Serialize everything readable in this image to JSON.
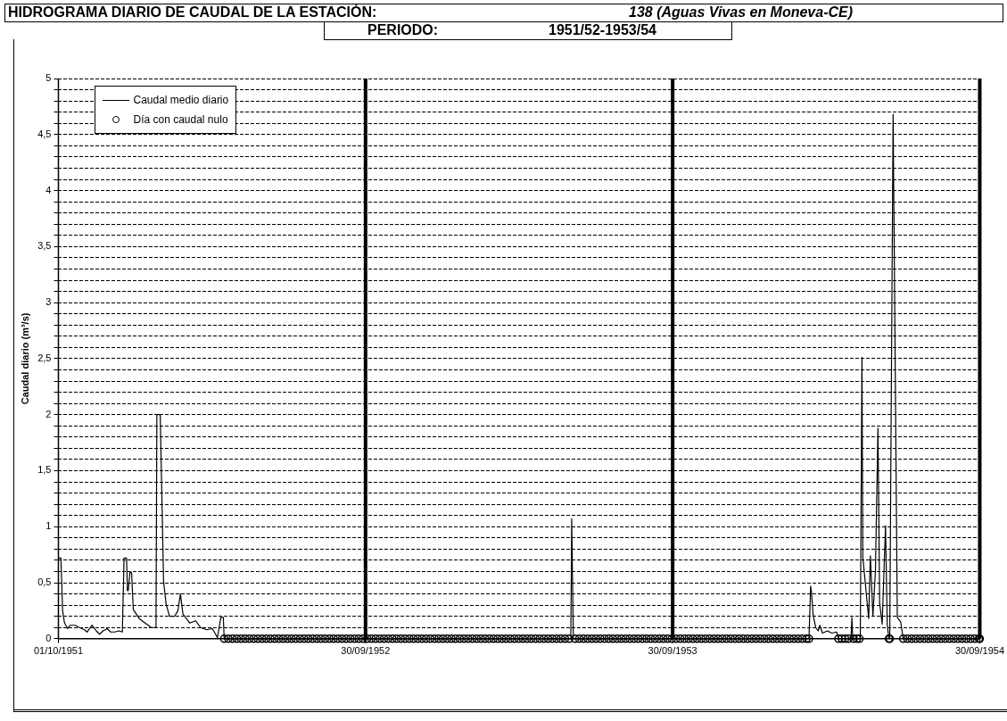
{
  "chart_data": {
    "type": "line",
    "title": "HIDROGRAMA DIARIO DE CAUDAL DE LA ESTACIÓN:",
    "subtitle": "138 (Aguas Vivas en Moneva-CE)",
    "annotations": [
      "PERIODO:",
      "1951/52-1953/54"
    ],
    "ylabel": "Caudal diario (m³/s)",
    "xlim": [
      "1951-10-01",
      "1954-09-30"
    ],
    "xticks": [
      {
        "value": "1951-10-01",
        "label": "01/10/1951"
      },
      {
        "value": "1952-09-30",
        "label": "30/09/1952"
      },
      {
        "value": "1953-09-30",
        "label": "30/09/1953"
      },
      {
        "value": "1954-09-30",
        "label": "30/09/1954"
      }
    ],
    "ylim": [
      0,
      5
    ],
    "yticks": [
      0,
      {
        "value": 0.1,
        "label": null
      },
      {
        "value": 0.2,
        "label": null
      },
      {
        "value": 0.3,
        "label": null
      },
      {
        "value": 0.4,
        "label": null
      },
      {
        "value": 0.5,
        "label": "0,5"
      },
      {
        "value": 0.6,
        "label": null
      },
      {
        "value": 0.7,
        "label": null
      },
      {
        "value": 0.8,
        "label": null
      },
      {
        "value": 0.9,
        "label": null
      },
      1,
      {
        "value": 1.1,
        "label": null
      },
      {
        "value": 1.2,
        "label": null
      },
      {
        "value": 1.3,
        "label": null
      },
      {
        "value": 1.4,
        "label": null
      },
      {
        "value": 1.5,
        "label": "1,5"
      },
      {
        "value": 1.6,
        "label": null
      },
      {
        "value": 1.7,
        "label": null
      },
      {
        "value": 1.8,
        "label": null
      },
      {
        "value": 1.9,
        "label": null
      },
      2,
      {
        "value": 2.1,
        "label": null
      },
      {
        "value": 2.2,
        "label": null
      },
      {
        "value": 2.3,
        "label": null
      },
      {
        "value": 2.4,
        "label": null
      },
      {
        "value": 2.5,
        "label": "2,5"
      },
      {
        "value": 2.6,
        "label": null
      },
      {
        "value": 2.7,
        "label": null
      },
      {
        "value": 2.8,
        "label": null
      },
      {
        "value": 2.9,
        "label": null
      },
      3,
      {
        "value": 3.1,
        "label": null
      },
      {
        "value": 3.2,
        "label": null
      },
      {
        "value": 3.3,
        "label": null
      },
      {
        "value": 3.4,
        "label": null
      },
      {
        "value": 3.5,
        "label": "3,5"
      },
      {
        "value": 3.6,
        "label": null
      },
      {
        "value": 3.7,
        "label": null
      },
      {
        "value": 3.8,
        "label": null
      },
      {
        "value": 3.9,
        "label": null
      },
      4,
      {
        "value": 4.1,
        "label": null
      },
      {
        "value": 4.2,
        "label": null
      },
      {
        "value": 4.3,
        "label": null
      },
      {
        "value": 4.4,
        "label": null
      },
      {
        "value": 4.5,
        "label": "4,5"
      },
      {
        "value": 4.6,
        "label": null
      },
      {
        "value": 4.7,
        "label": null
      },
      {
        "value": 4.8,
        "label": null
      },
      {
        "value": 4.9,
        "label": null
      },
      5
    ],
    "grid": "y",
    "legend": "top left",
    "ref_lines": [
      {
        "axis": "x",
        "value": "1952-09-30",
        "label": null,
        "color": "#000000"
      },
      {
        "axis": "x",
        "value": "1953-09-30",
        "label": null,
        "color": "#000000"
      }
    ],
    "series": [
      {
        "name": "Caudal medio diario",
        "type": "line",
        "marker": "none",
        "line_style": "solid",
        "color": "#000000",
        "x": [
          "1951-10-01",
          "1951-10-04",
          "1951-10-06",
          "1951-10-08",
          "1951-10-09",
          "1951-10-12",
          "1951-10-15",
          "1951-10-21",
          "1951-10-26",
          "1951-11-01",
          "1951-11-04",
          "1951-11-10",
          "1951-11-15",
          "1951-11-19",
          "1951-11-23",
          "1951-11-28",
          "1951-12-02",
          "1951-12-07",
          "1951-12-12",
          "1951-12-16",
          "1951-12-18",
          "1951-12-21",
          "1951-12-22",
          "1951-12-23",
          "1951-12-25",
          "1951-12-27",
          "1951-12-29",
          "1952-01-05",
          "1952-01-12",
          "1952-01-16",
          "1952-01-19",
          "1952-01-25",
          "1952-01-26",
          "1952-01-30",
          "1952-02-03",
          "1952-02-06",
          "1952-02-10",
          "1952-02-16",
          "1952-02-20",
          "1952-02-23",
          "1952-02-26",
          "1952-03-05",
          "1952-03-12",
          "1952-03-18",
          "1952-03-25",
          "1952-04-01",
          "1952-04-07",
          "1952-04-11",
          "1952-04-14",
          "1952-04-15",
          "1953-06-01",
          "1953-06-02",
          "1953-06-04",
          "1954-03-11",
          "1954-03-13",
          "1954-03-14",
          "1954-03-16",
          "1954-03-19",
          "1954-03-22",
          "1954-03-24",
          "1954-03-27",
          "1954-04-02",
          "1954-04-07",
          "1954-04-13",
          "1954-04-15",
          "1954-04-30",
          "1954-05-01",
          "1954-05-02",
          "1954-05-11",
          "1954-05-13",
          "1954-05-14",
          "1954-05-21",
          "1954-05-23",
          "1954-05-26",
          "1954-05-29",
          "1954-06-01",
          "1954-06-03",
          "1954-06-06",
          "1954-06-10",
          "1954-06-12",
          "1954-06-14",
          "1954-06-15",
          "1954-06-19",
          "1954-06-24",
          "1954-06-28",
          "1954-07-01",
          "1954-09-30"
        ],
        "values": [
          0.72,
          0.72,
          0.25,
          0.15,
          0.13,
          0.09,
          0.12,
          0.12,
          0.1,
          0.08,
          0.06,
          0.12,
          0.07,
          0.04,
          0.07,
          0.09,
          0.06,
          0.06,
          0.07,
          0.06,
          0.72,
          0.72,
          0.43,
          0.43,
          0.59,
          0.59,
          0.26,
          0.18,
          0.14,
          0.12,
          0.1,
          0.1,
          2,
          2,
          0.51,
          0.31,
          0.2,
          0.2,
          0.25,
          0.4,
          0.22,
          0.14,
          0.16,
          0.1,
          0.08,
          0.09,
          0.01,
          0.19,
          0.19,
          0,
          0,
          1.07,
          0,
          0,
          0.47,
          0.41,
          0.21,
          0.1,
          0.07,
          0.12,
          0.05,
          0.07,
          0.05,
          0.06,
          0,
          0,
          0.19,
          0,
          0,
          2.51,
          0.73,
          0.18,
          0.74,
          0.2,
          0.61,
          1.88,
          0.32,
          0.13,
          1.01,
          0.13,
          0,
          0,
          4.68,
          0.19,
          0.15,
          0,
          0
        ]
      },
      {
        "name": "Día con caudal nulo",
        "type": "scatter",
        "marker": "circle",
        "color": "#000000",
        "x": [
          "1952-04-15",
          "1952-04-20",
          "1952-04-25",
          "1952-04-30",
          "1952-05-05",
          "1952-05-10",
          "1952-05-15",
          "1952-05-20",
          "1952-05-25",
          "1952-05-30",
          "1952-06-04",
          "1952-06-09",
          "1952-06-14",
          "1952-06-19",
          "1952-06-24",
          "1952-06-29",
          "1952-07-04",
          "1952-07-09",
          "1952-07-14",
          "1952-07-19",
          "1952-07-24",
          "1952-07-29",
          "1952-08-03",
          "1952-08-08",
          "1952-08-13",
          "1952-08-18",
          "1952-08-23",
          "1952-08-28",
          "1952-09-02",
          "1952-09-07",
          "1952-09-12",
          "1952-09-17",
          "1952-09-22",
          "1952-09-27",
          "1952-10-02",
          "1952-10-07",
          "1952-10-12",
          "1952-10-17",
          "1952-10-22",
          "1952-10-27",
          "1952-11-01",
          "1952-11-06",
          "1952-11-11",
          "1952-11-16",
          "1952-11-21",
          "1952-11-26",
          "1952-12-01",
          "1952-12-06",
          "1952-12-11",
          "1952-12-16",
          "1952-12-21",
          "1952-12-26",
          "1952-12-31",
          "1953-01-05",
          "1953-01-10",
          "1953-01-15",
          "1953-01-20",
          "1953-01-25",
          "1953-01-30",
          "1953-02-04",
          "1953-02-09",
          "1953-02-14",
          "1953-02-19",
          "1953-02-24",
          "1953-03-01",
          "1953-03-06",
          "1953-03-11",
          "1953-03-16",
          "1953-03-21",
          "1953-03-26",
          "1953-03-31",
          "1953-04-05",
          "1953-04-10",
          "1953-04-15",
          "1953-04-20",
          "1953-04-25",
          "1953-04-30",
          "1953-05-05",
          "1953-05-10",
          "1953-05-15",
          "1953-05-20",
          "1953-05-25",
          "1953-05-30",
          "1953-06-06",
          "1953-06-11",
          "1953-06-16",
          "1953-06-21",
          "1953-06-26",
          "1953-07-01",
          "1953-07-06",
          "1953-07-11",
          "1953-07-16",
          "1953-07-21",
          "1953-07-26",
          "1953-07-31",
          "1953-08-05",
          "1953-08-10",
          "1953-08-15",
          "1953-08-20",
          "1953-08-25",
          "1953-08-30",
          "1953-09-04",
          "1953-09-09",
          "1953-09-14",
          "1953-09-19",
          "1953-09-24",
          "1953-09-29",
          "1953-10-04",
          "1953-10-09",
          "1953-10-14",
          "1953-10-19",
          "1953-10-24",
          "1953-10-29",
          "1953-11-03",
          "1953-11-08",
          "1953-11-13",
          "1953-11-18",
          "1953-11-23",
          "1953-11-28",
          "1953-12-03",
          "1953-12-08",
          "1953-12-13",
          "1953-12-18",
          "1953-12-23",
          "1953-12-28",
          "1954-01-02",
          "1954-01-07",
          "1954-01-12",
          "1954-01-17",
          "1954-01-22",
          "1954-01-27",
          "1954-02-01",
          "1954-02-06",
          "1954-02-11",
          "1954-02-16",
          "1954-02-21",
          "1954-02-26",
          "1954-03-03",
          "1954-03-08",
          "1954-03-11",
          "1954-04-15",
          "1954-04-19",
          "1954-04-23",
          "1954-04-27",
          "1954-05-03",
          "1954-05-07",
          "1954-05-10",
          "1954-06-14",
          "1954-06-15",
          "1954-07-01",
          "1954-07-06",
          "1954-07-11",
          "1954-07-16",
          "1954-07-21",
          "1954-07-26",
          "1954-07-31",
          "1954-08-05",
          "1954-08-10",
          "1954-08-15",
          "1954-08-20",
          "1954-08-25",
          "1954-08-30",
          "1954-09-04",
          "1954-09-09",
          "1954-09-14",
          "1954-09-19",
          "1954-09-24",
          "1954-09-29",
          "1954-09-30"
        ],
        "values": [
          0,
          0,
          0,
          0,
          0,
          0,
          0,
          0,
          0,
          0,
          0,
          0,
          0,
          0,
          0,
          0,
          0,
          0,
          0,
          0,
          0,
          0,
          0,
          0,
          0,
          0,
          0,
          0,
          0,
          0,
          0,
          0,
          0,
          0,
          0,
          0,
          0,
          0,
          0,
          0,
          0,
          0,
          0,
          0,
          0,
          0,
          0,
          0,
          0,
          0,
          0,
          0,
          0,
          0,
          0,
          0,
          0,
          0,
          0,
          0,
          0,
          0,
          0,
          0,
          0,
          0,
          0,
          0,
          0,
          0,
          0,
          0,
          0,
          0,
          0,
          0,
          0,
          0,
          0,
          0,
          0,
          0,
          0,
          0,
          0,
          0,
          0,
          0,
          0,
          0,
          0,
          0,
          0,
          0,
          0,
          0,
          0,
          0,
          0,
          0,
          0,
          0,
          0,
          0,
          0,
          0,
          0,
          0,
          0,
          0,
          0,
          0,
          0,
          0,
          0,
          0,
          0,
          0,
          0,
          0,
          0,
          0,
          0,
          0,
          0,
          0,
          0,
          0,
          0,
          0,
          0,
          0,
          0,
          0,
          0,
          0,
          0,
          0,
          0,
          0,
          0,
          0,
          0,
          0,
          0,
          0,
          0,
          0,
          0,
          0,
          0,
          0,
          0,
          0,
          0,
          0,
          0,
          0,
          0,
          0,
          0,
          0,
          0,
          0,
          0,
          0,
          0,
          0,
          0
        ]
      }
    ]
  }
}
